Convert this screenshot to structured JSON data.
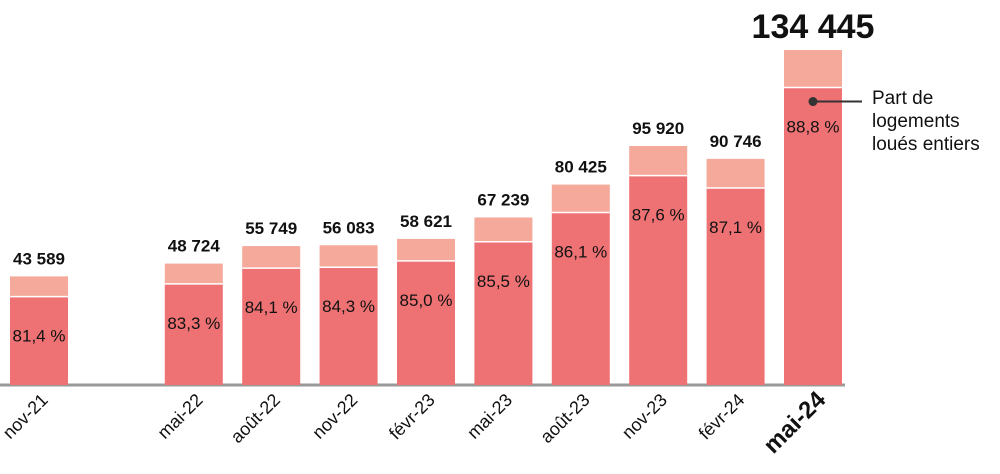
{
  "chart_data": {
    "type": "bar",
    "stacked": true,
    "categories": [
      "nov-21",
      "mai-22",
      "août-22",
      "nov-22",
      "févr-23",
      "mai-23",
      "août-23",
      "nov-23",
      "févr-24",
      "mai-24"
    ],
    "slot_index": [
      0,
      2,
      3,
      4,
      5,
      6,
      7,
      8,
      9,
      10
    ],
    "totals": [
      43589,
      48724,
      55749,
      56083,
      58621,
      67239,
      80425,
      95920,
      90746,
      134445
    ],
    "total_labels": [
      "43 589",
      "48 724",
      "55 749",
      "56 083",
      "58 621",
      "67 239",
      "80 425",
      "95 920",
      "90 746",
      "134 445"
    ],
    "share_entire": [
      81.4,
      83.3,
      84.1,
      84.3,
      85.0,
      85.5,
      86.1,
      87.6,
      87.1,
      88.8
    ],
    "share_labels": [
      "81,4 %",
      "83,3 %",
      "84,1 %",
      "84,3 %",
      "85,0 %",
      "85,5 %",
      "86,1 %",
      "87,6 %",
      "87,1 %",
      "88,8 %"
    ],
    "highlight_index": 9,
    "annotation": "Part de logements loués entiers",
    "annotation_lines": [
      "Part de",
      "logements",
      "loués entiers"
    ],
    "ylim": [
      0,
      134445
    ],
    "grid": false,
    "colors": {
      "entire": "#ee7274",
      "rest": "#f4a99b",
      "baseline": "#999999",
      "text": "#111111"
    }
  }
}
